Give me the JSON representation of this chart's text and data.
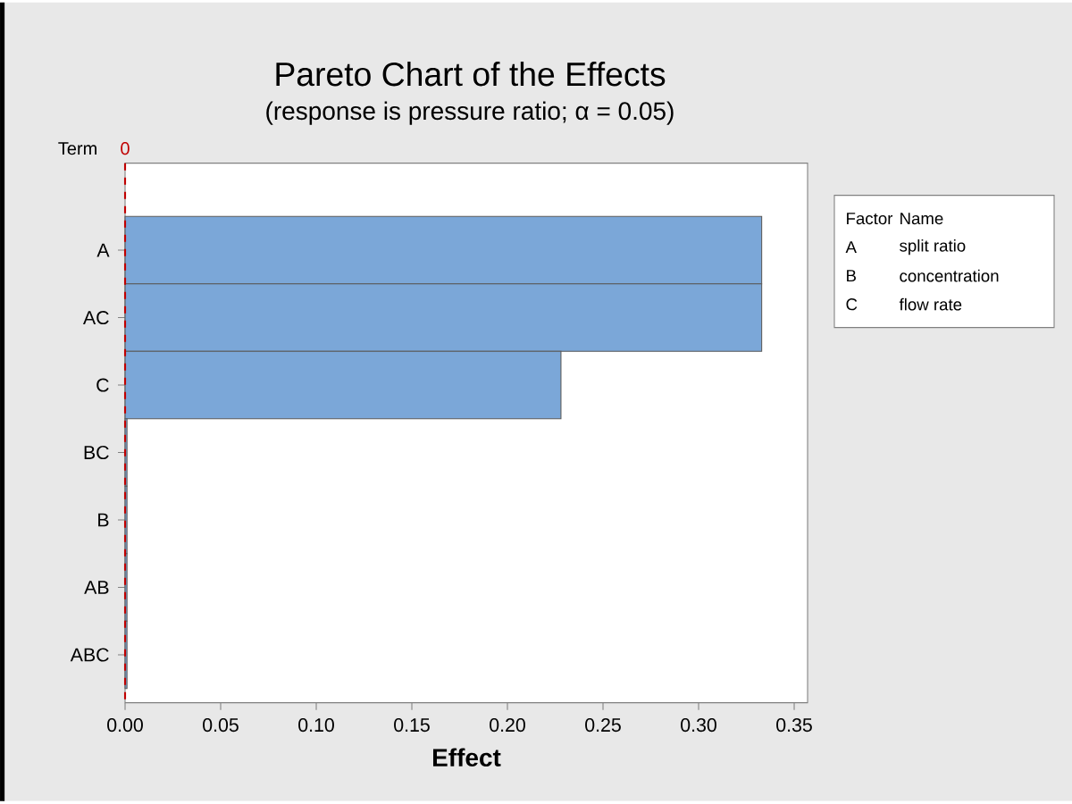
{
  "chart_data": {
    "type": "bar",
    "orientation": "horizontal",
    "title": "Pareto Chart of the Effects",
    "subtitle": "(response is pressure ratio; α = 0.05)",
    "xlabel": "Effect",
    "ylabel": "Term",
    "categories": [
      "A",
      "AC",
      "C",
      "BC",
      "B",
      "AB",
      "ABC"
    ],
    "values": [
      0.333,
      0.333,
      0.228,
      0.001,
      0.001,
      0.001,
      0.001
    ],
    "color": "#7ba7d8",
    "xlim": [
      0,
      0.357
    ],
    "xticks": [
      {
        "value": 0,
        "label": "0.00"
      },
      {
        "value": 0.05,
        "label": "0.05"
      },
      {
        "value": 0.1,
        "label": "0.10"
      },
      {
        "value": 0.15,
        "label": "0.15"
      },
      {
        "value": 0.2,
        "label": "0.20"
      },
      {
        "value": 0.25,
        "label": "0.25"
      },
      {
        "value": 0.3,
        "label": "0.30"
      },
      {
        "value": 0.35,
        "label": "0.35"
      }
    ],
    "ref_lines": [
      {
        "axis": "x",
        "value": 0,
        "label": "0",
        "color": "#c00000",
        "line_style": "dashed"
      }
    ],
    "annotations": [
      "Factor",
      "Name",
      "A",
      "split ratio",
      "B",
      "concentration",
      "C",
      "flow rate"
    ],
    "grid": false
  }
}
